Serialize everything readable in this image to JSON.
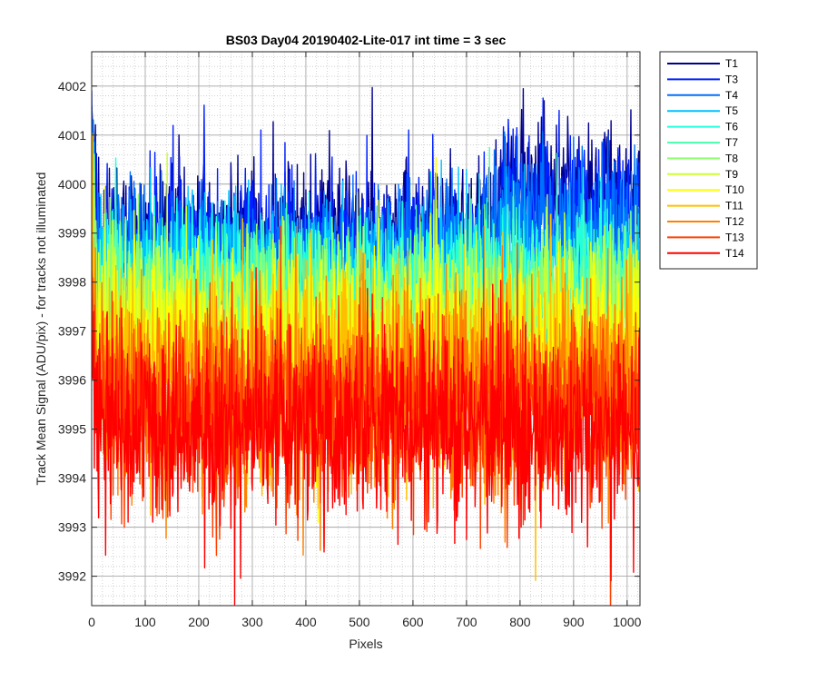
{
  "chart_data": {
    "type": "line",
    "title": "BS03 Day04 20190402-Lite-017 int time = 3 sec",
    "xlabel": "Pixels",
    "ylabel": "Track Mean Signal (ADU/pix) - for tracks not illuminated",
    "xlim": [
      0,
      1024
    ],
    "ylim": [
      3991.4,
      4002.7
    ],
    "x_ticks": [
      0,
      100,
      200,
      300,
      400,
      500,
      600,
      700,
      800,
      900,
      1000
    ],
    "y_ticks": [
      3992,
      3993,
      3994,
      3995,
      3996,
      3997,
      3998,
      3999,
      4000,
      4001,
      4002
    ],
    "grid": "on",
    "minor_grid": "on",
    "legend_position": "outside-right",
    "n_points": 1024,
    "series": [
      {
        "name": "T1",
        "color": "#00008F",
        "baseline": 3999.0,
        "noise": 0.7,
        "high_segment_from": 760,
        "high_segment_level": 3999.9
      },
      {
        "name": "T3",
        "color": "#0020FF",
        "baseline": 3998.8,
        "noise": 0.7,
        "high_segment_from": 760,
        "high_segment_level": 3999.6
      },
      {
        "name": "T4",
        "color": "#0070FF",
        "baseline": 3998.6,
        "noise": 0.7,
        "high_segment_from": 760,
        "high_segment_level": 3999.2
      },
      {
        "name": "T5",
        "color": "#00C0FF",
        "baseline": 3998.3,
        "noise": 0.7
      },
      {
        "name": "T6",
        "color": "#20FFDF",
        "baseline": 3998.0,
        "noise": 0.7
      },
      {
        "name": "T7",
        "color": "#50FFAF",
        "baseline": 3997.7,
        "noise": 0.75
      },
      {
        "name": "T8",
        "color": "#8FFF70",
        "baseline": 3997.4,
        "noise": 0.8
      },
      {
        "name": "T9",
        "color": "#CFFF30",
        "baseline": 3997.1,
        "noise": 0.85
      },
      {
        "name": "T10",
        "color": "#FFFF00",
        "baseline": 3996.6,
        "noise": 0.9
      },
      {
        "name": "T11",
        "color": "#FFBF00",
        "baseline": 3996.1,
        "noise": 1.0
      },
      {
        "name": "T12",
        "color": "#FF8000",
        "baseline": 3995.7,
        "noise": 1.0
      },
      {
        "name": "T13",
        "color": "#FF4000",
        "baseline": 3995.4,
        "noise": 1.0
      },
      {
        "name": "T14",
        "color": "#FF0000",
        "baseline": 3995.1,
        "noise": 0.95
      }
    ]
  }
}
